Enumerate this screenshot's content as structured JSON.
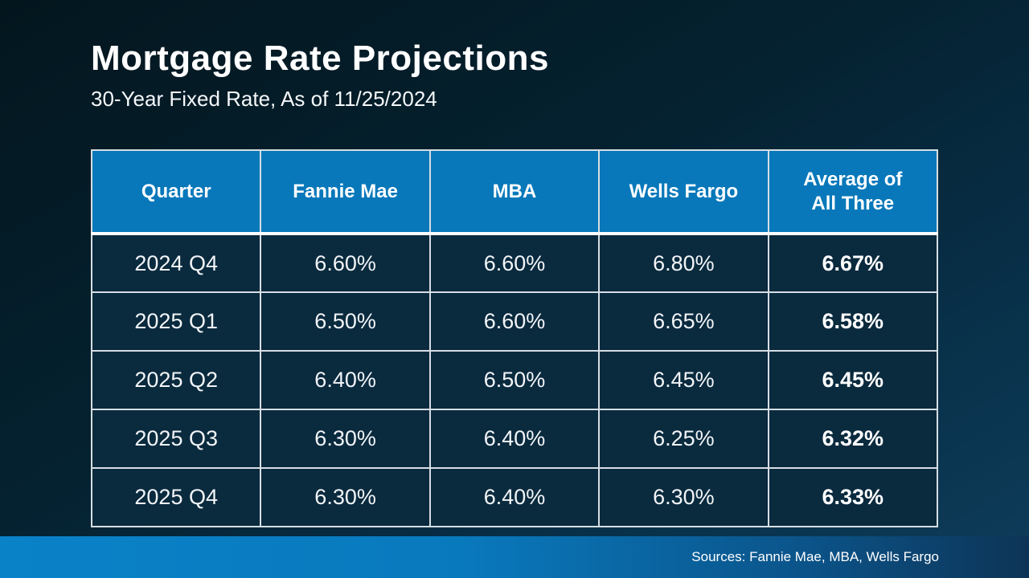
{
  "slide": {
    "title": "Mortgage Rate Projections",
    "subtitle": "30-Year Fixed Rate, As of 11/25/2024",
    "footer": {
      "sources": "Sources: Fannie Mae, MBA, Wells Fargo"
    }
  },
  "colors": {
    "header_blue": "#0878BA",
    "cell_background": "#0A2A3E",
    "border_light": "#D7DEE3",
    "footer_gradient_left": "#0A82C8",
    "footer_gradient_right": "#0D3456",
    "background_top_left": "#03161E",
    "background_bottom_right": "#0E3D5B",
    "text": "#FFFFFF"
  },
  "chart_data": {
    "type": "table",
    "title": "Mortgage Rate Projections",
    "subtitle": "30-Year Fixed Rate, As of 11/25/2024",
    "columns": [
      "Quarter",
      "Fannie Mae",
      "MBA",
      "Wells Fargo",
      "Average of\nAll Three"
    ],
    "rows": [
      [
        "2024 Q4",
        "6.60%",
        "6.60%",
        "6.80%",
        "6.67%"
      ],
      [
        "2025 Q1",
        "6.50%",
        "6.60%",
        "6.65%",
        "6.58%"
      ],
      [
        "2025 Q2",
        "6.40%",
        "6.50%",
        "6.45%",
        "6.45%"
      ],
      [
        "2025 Q3",
        "6.30%",
        "6.40%",
        "6.25%",
        "6.32%"
      ],
      [
        "2025 Q4",
        "6.30%",
        "6.40%",
        "6.30%",
        "6.33%"
      ]
    ],
    "notes": "Last column (Average of All Three) values are bold; header row blue; sources credit in footer bar",
    "sources": "Sources: Fannie Mae, MBA, Wells Fargo"
  }
}
